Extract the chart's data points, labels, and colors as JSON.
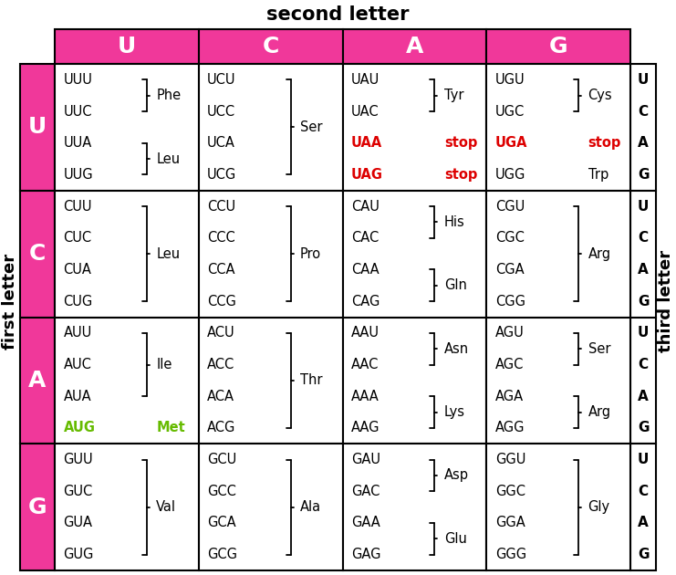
{
  "title_top": "second letter",
  "title_left": "first letter",
  "title_right": "third letter",
  "second_letters": [
    "U",
    "C",
    "A",
    "G"
  ],
  "first_letters": [
    "U",
    "C",
    "A",
    "G"
  ],
  "third_letters": [
    "U",
    "C",
    "A",
    "G"
  ],
  "pink_color": "#F0389A",
  "green_color": "#66BB00",
  "red_color": "#DD0000",
  "cells": [
    {
      "row": 0,
      "col": 0,
      "codons": [
        "UUU",
        "UUC",
        "UUA",
        "UUG"
      ],
      "codon_colors": [
        "black",
        "black",
        "black",
        "black"
      ],
      "bracket_pairs": [
        [
          0,
          1,
          "Phe",
          "black"
        ],
        [
          2,
          3,
          "Leu",
          "black"
        ]
      ],
      "standalone": []
    },
    {
      "row": 0,
      "col": 1,
      "codons": [
        "UCU",
        "UCC",
        "UCA",
        "UCG"
      ],
      "codon_colors": [
        "black",
        "black",
        "black",
        "black"
      ],
      "bracket_pairs": [
        [
          0,
          3,
          "Ser",
          "black"
        ]
      ],
      "standalone": []
    },
    {
      "row": 0,
      "col": 2,
      "codons": [
        "UAU",
        "UAC",
        "UAA",
        "UAG"
      ],
      "codon_colors": [
        "black",
        "black",
        "red",
        "red"
      ],
      "bracket_pairs": [
        [
          0,
          1,
          "Tyr",
          "black"
        ]
      ],
      "standalone": [
        {
          "idx": 2,
          "aa": "stop",
          "color": "red"
        },
        {
          "idx": 3,
          "aa": "stop",
          "color": "red"
        }
      ]
    },
    {
      "row": 0,
      "col": 3,
      "codons": [
        "UGU",
        "UGC",
        "UGA",
        "UGG"
      ],
      "codon_colors": [
        "black",
        "black",
        "red",
        "black"
      ],
      "bracket_pairs": [
        [
          0,
          1,
          "Cys",
          "black"
        ]
      ],
      "standalone": [
        {
          "idx": 2,
          "aa": "stop",
          "color": "red"
        },
        {
          "idx": 3,
          "aa": "Trp",
          "color": "black"
        }
      ]
    },
    {
      "row": 1,
      "col": 0,
      "codons": [
        "CUU",
        "CUC",
        "CUA",
        "CUG"
      ],
      "codon_colors": [
        "black",
        "black",
        "black",
        "black"
      ],
      "bracket_pairs": [
        [
          0,
          3,
          "Leu",
          "black"
        ]
      ],
      "standalone": []
    },
    {
      "row": 1,
      "col": 1,
      "codons": [
        "CCU",
        "CCC",
        "CCA",
        "CCG"
      ],
      "codon_colors": [
        "black",
        "black",
        "black",
        "black"
      ],
      "bracket_pairs": [
        [
          0,
          3,
          "Pro",
          "black"
        ]
      ],
      "standalone": []
    },
    {
      "row": 1,
      "col": 2,
      "codons": [
        "CAU",
        "CAC",
        "CAA",
        "CAG"
      ],
      "codon_colors": [
        "black",
        "black",
        "black",
        "black"
      ],
      "bracket_pairs": [
        [
          0,
          1,
          "His",
          "black"
        ],
        [
          2,
          3,
          "Gln",
          "black"
        ]
      ],
      "standalone": []
    },
    {
      "row": 1,
      "col": 3,
      "codons": [
        "CGU",
        "CGC",
        "CGA",
        "CGG"
      ],
      "codon_colors": [
        "black",
        "black",
        "black",
        "black"
      ],
      "bracket_pairs": [
        [
          0,
          3,
          "Arg",
          "black"
        ]
      ],
      "standalone": []
    },
    {
      "row": 2,
      "col": 0,
      "codons": [
        "AUU",
        "AUC",
        "AUA",
        "AUG"
      ],
      "codon_colors": [
        "black",
        "black",
        "black",
        "green"
      ],
      "bracket_pairs": [
        [
          0,
          2,
          "Ile",
          "black"
        ]
      ],
      "standalone": [
        {
          "idx": 3,
          "aa": "Met",
          "color": "green"
        }
      ]
    },
    {
      "row": 2,
      "col": 1,
      "codons": [
        "ACU",
        "ACC",
        "ACA",
        "ACG"
      ],
      "codon_colors": [
        "black",
        "black",
        "black",
        "black"
      ],
      "bracket_pairs": [
        [
          0,
          3,
          "Thr",
          "black"
        ]
      ],
      "standalone": []
    },
    {
      "row": 2,
      "col": 2,
      "codons": [
        "AAU",
        "AAC",
        "AAA",
        "AAG"
      ],
      "codon_colors": [
        "black",
        "black",
        "black",
        "black"
      ],
      "bracket_pairs": [
        [
          0,
          1,
          "Asn",
          "black"
        ],
        [
          2,
          3,
          "Lys",
          "black"
        ]
      ],
      "standalone": []
    },
    {
      "row": 2,
      "col": 3,
      "codons": [
        "AGU",
        "AGC",
        "AGA",
        "AGG"
      ],
      "codon_colors": [
        "black",
        "black",
        "black",
        "black"
      ],
      "bracket_pairs": [
        [
          0,
          1,
          "Ser",
          "black"
        ],
        [
          2,
          3,
          "Arg",
          "black"
        ]
      ],
      "standalone": []
    },
    {
      "row": 3,
      "col": 0,
      "codons": [
        "GUU",
        "GUC",
        "GUA",
        "GUG"
      ],
      "codon_colors": [
        "black",
        "black",
        "black",
        "black"
      ],
      "bracket_pairs": [
        [
          0,
          3,
          "Val",
          "black"
        ]
      ],
      "standalone": []
    },
    {
      "row": 3,
      "col": 1,
      "codons": [
        "GCU",
        "GCC",
        "GCA",
        "GCG"
      ],
      "codon_colors": [
        "black",
        "black",
        "black",
        "black"
      ],
      "bracket_pairs": [
        [
          0,
          3,
          "Ala",
          "black"
        ]
      ],
      "standalone": []
    },
    {
      "row": 3,
      "col": 2,
      "codons": [
        "GAU",
        "GAC",
        "GAA",
        "GAG"
      ],
      "codon_colors": [
        "black",
        "black",
        "black",
        "black"
      ],
      "bracket_pairs": [
        [
          0,
          1,
          "Asp",
          "black"
        ],
        [
          2,
          3,
          "Glu",
          "black"
        ]
      ],
      "standalone": []
    },
    {
      "row": 3,
      "col": 3,
      "codons": [
        "GGU",
        "GGC",
        "GGA",
        "GGG"
      ],
      "codon_colors": [
        "black",
        "black",
        "black",
        "black"
      ],
      "bracket_pairs": [
        [
          0,
          3,
          "Gly",
          "black"
        ]
      ],
      "standalone": []
    }
  ]
}
